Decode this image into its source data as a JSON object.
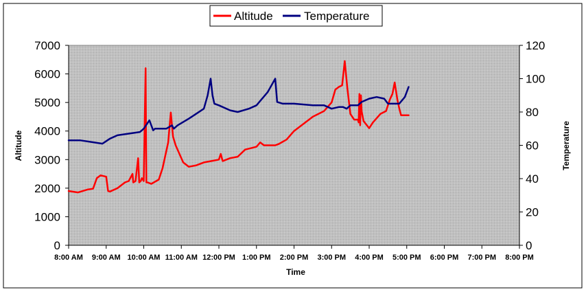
{
  "chart_data": {
    "type": "line",
    "title": "",
    "xlabel": "Time",
    "ylabel_left": "Altitude",
    "ylabel_right": "Temperature",
    "x_ticks": [
      "8:00 AM",
      "9:00 AM",
      "10:00 AM",
      "11:00 AM",
      "12:00 PM",
      "1:00 PM",
      "2:00 PM",
      "3:00 PM",
      "4:00 PM",
      "5:00 PM",
      "6:00 PM",
      "7:00 PM",
      "8:00 PM"
    ],
    "xlim_hours": [
      8,
      20
    ],
    "ylim_left": [
      0,
      7000
    ],
    "y_ticks_left": [
      "0",
      "1000",
      "2000",
      "3000",
      "4000",
      "5000",
      "6000",
      "7000"
    ],
    "ylim_right": [
      0,
      120
    ],
    "y_ticks_right": [
      "0",
      "20",
      "40",
      "60",
      "80",
      "100",
      "120"
    ],
    "legend_position": "top-center",
    "plot_background": "#c0c0c0",
    "series": [
      {
        "name": "Altitude",
        "axis": "left",
        "color": "#ff0000",
        "x_hours": [
          8.0,
          8.25,
          8.5,
          8.65,
          8.75,
          8.85,
          9.0,
          9.05,
          9.1,
          9.3,
          9.5,
          9.6,
          9.7,
          9.72,
          9.78,
          9.85,
          9.88,
          9.92,
          9.95,
          10.0,
          10.05,
          10.07,
          10.1,
          10.2,
          10.4,
          10.5,
          10.65,
          10.72,
          10.78,
          10.85,
          10.95,
          11.05,
          11.2,
          11.4,
          11.6,
          11.8,
          12.0,
          12.05,
          12.1,
          12.3,
          12.5,
          12.7,
          12.85,
          13.0,
          13.1,
          13.2,
          13.5,
          13.6,
          13.8,
          14.0,
          14.3,
          14.5,
          14.8,
          15.0,
          15.1,
          15.2,
          15.28,
          15.35,
          15.42,
          15.5,
          15.6,
          15.7,
          15.72,
          15.74,
          15.76,
          15.78,
          15.8,
          15.85,
          16.0,
          16.1,
          16.3,
          16.45,
          16.55,
          16.62,
          16.68,
          16.75,
          16.8,
          16.85,
          16.95,
          17.05
        ],
        "values": [
          1900,
          1850,
          1950,
          1980,
          2350,
          2450,
          2400,
          1900,
          1880,
          2000,
          2200,
          2250,
          2500,
          2200,
          2250,
          3050,
          2200,
          2250,
          2350,
          2250,
          6200,
          2200,
          2200,
          2150,
          2300,
          2700,
          3600,
          4650,
          3800,
          3500,
          3200,
          2900,
          2750,
          2800,
          2900,
          2950,
          3000,
          3200,
          2950,
          3050,
          3100,
          3350,
          3400,
          3450,
          3600,
          3500,
          3500,
          3550,
          3700,
          4000,
          4300,
          4500,
          4700,
          5000,
          5450,
          5550,
          5600,
          6450,
          5500,
          4600,
          4400,
          4400,
          4300,
          5300,
          4200,
          5250,
          4700,
          4350,
          4100,
          4300,
          4600,
          4700,
          5100,
          5300,
          5700,
          5100,
          4800,
          4550,
          4550,
          4550
        ]
      },
      {
        "name": "Temperature",
        "axis": "right",
        "color": "#000080",
        "x_hours": [
          8.0,
          8.3,
          8.6,
          8.9,
          9.1,
          9.3,
          9.6,
          9.9,
          10.0,
          10.15,
          10.25,
          10.3,
          10.4,
          10.6,
          10.75,
          10.8,
          10.9,
          11.2,
          11.4,
          11.6,
          11.7,
          11.78,
          11.83,
          11.88,
          12.0,
          12.3,
          12.5,
          12.8,
          13.0,
          13.3,
          13.5,
          13.55,
          13.7,
          14.0,
          14.5,
          14.8,
          15.0,
          15.2,
          15.3,
          15.4,
          15.5,
          15.7,
          15.8,
          16.0,
          16.2,
          16.4,
          16.5,
          16.7,
          16.8,
          16.95,
          17.05
        ],
        "values": [
          63,
          63,
          62,
          61,
          64,
          66,
          67,
          68,
          70,
          75,
          69,
          70,
          70,
          70,
          72,
          70,
          72,
          76,
          79,
          82,
          90,
          100,
          90,
          85,
          84,
          81,
          80,
          82,
          84,
          92,
          100,
          86,
          85,
          85,
          84,
          84,
          82,
          83,
          83,
          82,
          84,
          84,
          86,
          88,
          89,
          88,
          85,
          85,
          85,
          89,
          95
        ]
      }
    ]
  }
}
